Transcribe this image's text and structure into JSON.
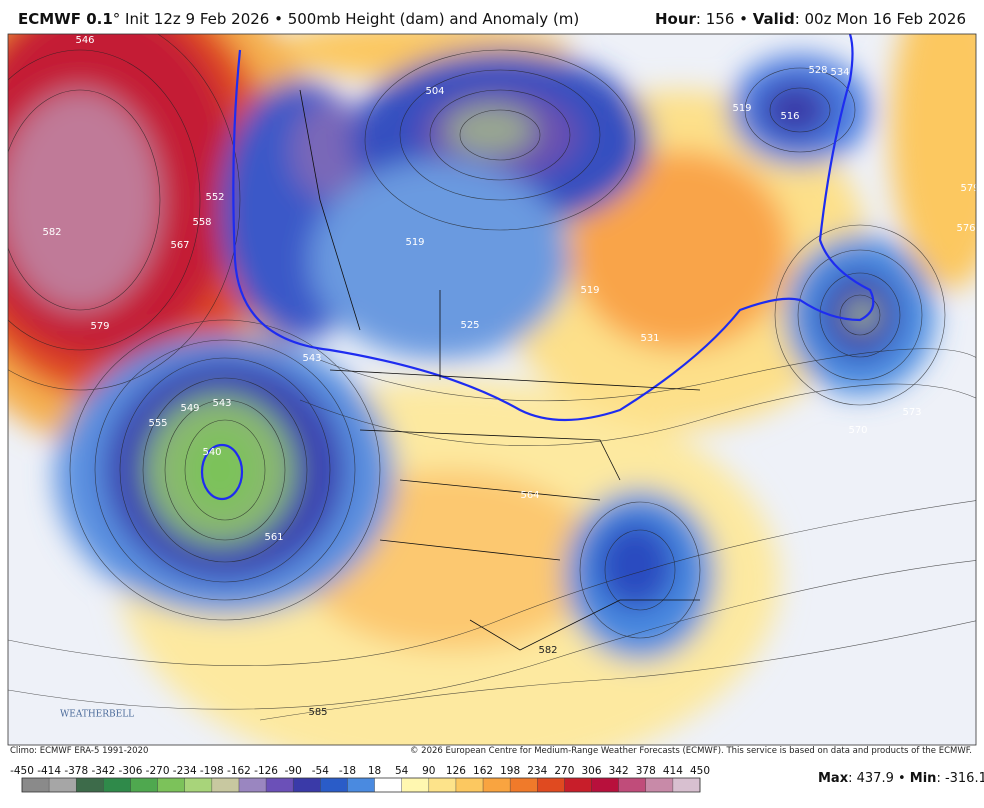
{
  "header": {
    "left": [
      {
        "text": "ECMWF 0.1",
        "bold": true
      },
      {
        "text": "° Init 12z 9 Feb 2026 • 500mb Height (dam) and Anomaly (m)"
      }
    ],
    "right": [
      {
        "text": "Hour",
        "bold": true
      },
      {
        "text": ": 156 • "
      },
      {
        "text": "Valid",
        "bold": true
      },
      {
        "text": ": 00z Mon 16 Feb 2026"
      }
    ]
  },
  "logo": "WEATHERBELL",
  "footer": {
    "climo": "Climo: ECMWF ERA-5 1991-2020",
    "copyright": "© 2026 European Centre for Medium-Range Weather Forecasts (ECMWF). This service is based on data and products of the ECMWF."
  },
  "colorbar": {
    "ticks": [
      -450,
      -414,
      -378,
      -342,
      -306,
      -270,
      -234,
      -198,
      -162,
      -126,
      -90,
      -54,
      -18,
      18,
      54,
      90,
      126,
      162,
      198,
      234,
      270,
      306,
      342,
      378,
      414,
      450
    ],
    "colors": [
      "#8a8a8a",
      "#a6a6a6",
      "#3d6b4a",
      "#2f8a4a",
      "#4fa84f",
      "#7cc25a",
      "#a8d47a",
      "#c8c8a0",
      "#9a86c0",
      "#6b50b8",
      "#3a3aa8",
      "#2a5cc8",
      "#4a8ae0",
      "#ffffff",
      "#fff7b0",
      "#fde38a",
      "#fcc860",
      "#f9a440",
      "#f07a2a",
      "#e04a20",
      "#c81e2a",
      "#b8103c",
      "#c04c7a",
      "#c88aa8",
      "#d8c0d0"
    ]
  },
  "stats": {
    "max_label": "Max",
    "colon": ": ",
    "max": 437.9,
    "sep": " • ",
    "min_label": "Min",
    "min": -316.1
  },
  "contour_labels": [
    546,
    582,
    579,
    567,
    558,
    552,
    504,
    519,
    516,
    528,
    534,
    519,
    531,
    519,
    525,
    543,
    555,
    549,
    543,
    540,
    561,
    564,
    573,
    570,
    576,
    579,
    582,
    585
  ]
}
